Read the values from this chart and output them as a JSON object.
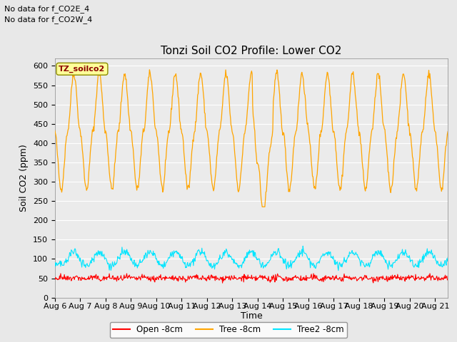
{
  "title": "Tonzi Soil CO2 Profile: Lower CO2",
  "ylabel": "Soil CO2 (ppm)",
  "xlabel": "Time",
  "no_data_text": [
    "No data for f_CO2E_4",
    "No data for f_CO2W_4"
  ],
  "annotation_box": "TZ_soilco2",
  "ylim": [
    0,
    620
  ],
  "yticks": [
    0,
    50,
    100,
    150,
    200,
    250,
    300,
    350,
    400,
    450,
    500,
    550,
    600
  ],
  "xtick_labels": [
    "Aug 6",
    "Aug 7",
    "Aug 8",
    "Aug 9",
    "Aug 10",
    "Aug 11",
    "Aug 12",
    "Aug 13",
    "Aug 14",
    "Aug 15",
    "Aug 16",
    "Aug 17",
    "Aug 18",
    "Aug 19",
    "Aug 20",
    "Aug 21"
  ],
  "legend": [
    {
      "label": "Open -8cm",
      "color": "#ff0000"
    },
    {
      "label": "Tree -8cm",
      "color": "#ffa500"
    },
    {
      "label": "Tree2 -8cm",
      "color": "#00e5ff"
    }
  ],
  "bg_color": "#e8e8e8",
  "plot_bg_color": "#ebebeb",
  "orange_color": "#ffa500",
  "red_color": "#ff0000",
  "cyan_color": "#00e5ff",
  "title_fontsize": 11,
  "axis_fontsize": 9,
  "tick_fontsize": 8
}
